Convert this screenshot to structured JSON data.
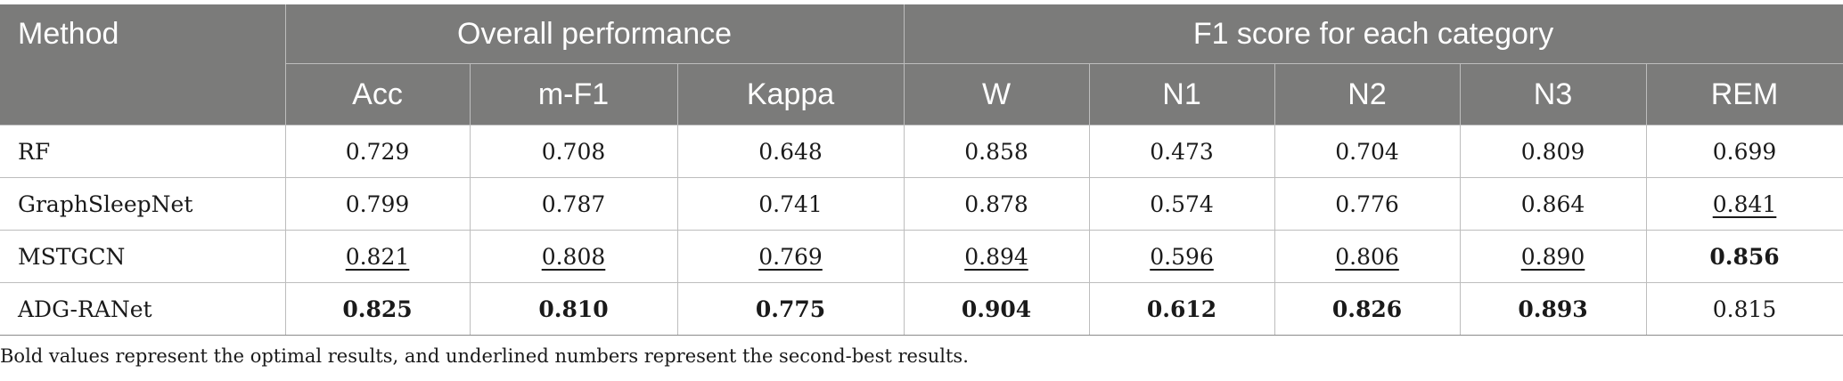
{
  "table": {
    "header": {
      "method": "Method",
      "group_overall": "Overall performance",
      "group_f1": "F1 score for each category",
      "columns": [
        "Acc",
        "m-F1",
        "Kappa",
        "W",
        "N1",
        "N2",
        "N3",
        "REM"
      ]
    },
    "rows": [
      {
        "method": "RF",
        "cells": [
          {
            "value": "0.729",
            "style": "normal"
          },
          {
            "value": "0.708",
            "style": "normal"
          },
          {
            "value": "0.648",
            "style": "normal"
          },
          {
            "value": "0.858",
            "style": "normal"
          },
          {
            "value": "0.473",
            "style": "normal"
          },
          {
            "value": "0.704",
            "style": "normal"
          },
          {
            "value": "0.809",
            "style": "normal"
          },
          {
            "value": "0.699",
            "style": "normal"
          }
        ]
      },
      {
        "method": "GraphSleepNet",
        "cells": [
          {
            "value": "0.799",
            "style": "normal"
          },
          {
            "value": "0.787",
            "style": "normal"
          },
          {
            "value": "0.741",
            "style": "normal"
          },
          {
            "value": "0.878",
            "style": "normal"
          },
          {
            "value": "0.574",
            "style": "normal"
          },
          {
            "value": "0.776",
            "style": "normal"
          },
          {
            "value": "0.864",
            "style": "normal"
          },
          {
            "value": "0.841",
            "style": "underline"
          }
        ]
      },
      {
        "method": "MSTGCN",
        "cells": [
          {
            "value": "0.821",
            "style": "underline"
          },
          {
            "value": "0.808",
            "style": "underline"
          },
          {
            "value": "0.769",
            "style": "underline"
          },
          {
            "value": "0.894",
            "style": "underline"
          },
          {
            "value": "0.596",
            "style": "underline"
          },
          {
            "value": "0.806",
            "style": "underline"
          },
          {
            "value": "0.890",
            "style": "underline"
          },
          {
            "value": "0.856",
            "style": "bold"
          }
        ]
      },
      {
        "method": "ADG-RANet",
        "cells": [
          {
            "value": "0.825",
            "style": "bold"
          },
          {
            "value": "0.810",
            "style": "bold"
          },
          {
            "value": "0.775",
            "style": "bold"
          },
          {
            "value": "0.904",
            "style": "bold"
          },
          {
            "value": "0.612",
            "style": "bold"
          },
          {
            "value": "0.826",
            "style": "bold"
          },
          {
            "value": "0.893",
            "style": "bold"
          },
          {
            "value": "0.815",
            "style": "normal"
          }
        ]
      }
    ]
  },
  "footnote": "Bold values represent the optimal results, and underlined numbers represent the second-best results.",
  "colors": {
    "header_bg": "#7b7b7a",
    "header_text": "#ffffff",
    "grid": "#bdbdbd"
  }
}
